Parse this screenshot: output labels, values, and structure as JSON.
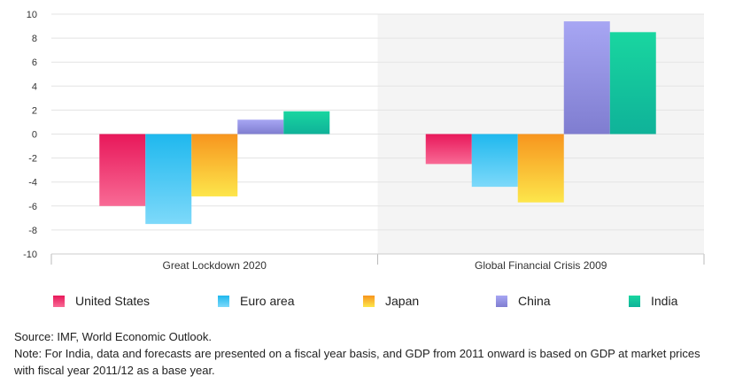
{
  "chart_data": {
    "type": "bar",
    "categories": [
      "Great Lockdown 2020",
      "Global Financial Crisis 2009"
    ],
    "series": [
      {
        "name": "United States",
        "values": [
          -6.0,
          -2.5
        ],
        "color_top": "#e8185a",
        "color_bottom": "#f86a95"
      },
      {
        "name": "Euro area",
        "values": [
          -7.5,
          -4.4
        ],
        "color_top": "#1fb8ee",
        "color_bottom": "#7dd9fa"
      },
      {
        "name": "Japan",
        "values": [
          -5.2,
          -5.7
        ],
        "color_top": "#f7951e",
        "color_bottom": "#fde64b"
      },
      {
        "name": "China",
        "values": [
          1.2,
          9.4
        ],
        "color_top": "#a7a6f3",
        "color_bottom": "#7f7dd0"
      },
      {
        "name": "India",
        "values": [
          1.9,
          8.5
        ],
        "color_top": "#19d6a0",
        "color_bottom": "#0fb299"
      }
    ],
    "ylim": [
      -10,
      10
    ],
    "yticks": [
      10,
      8,
      6,
      4,
      2,
      0,
      -2,
      -4,
      -6,
      -8,
      -10
    ],
    "grid": true,
    "legend_position": "bottom",
    "xlabel": "",
    "ylabel": "",
    "title": ""
  },
  "notes": {
    "source": "Source: IMF, World Economic Outlook.",
    "note": "Note: For India, data and forecasts are presented on a fiscal year basis, and GDP from 2011 onward is based on GDP at market prices with fiscal year 2011/12 as a base year."
  }
}
